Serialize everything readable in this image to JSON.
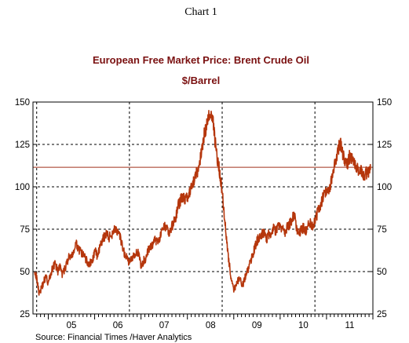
{
  "chart_data": {
    "type": "line",
    "heading": "Chart 1",
    "title": "European Free Market Price: Brent Crude Oil",
    "subtitle": "$/Barrel",
    "source": "Source:  Financial Times /Haver Analytics",
    "ylim": [
      25,
      150
    ],
    "yticks": [
      25,
      50,
      75,
      100,
      125,
      150
    ],
    "y_axes": [
      "left",
      "right"
    ],
    "x_range": [
      2004.67,
      2012.0
    ],
    "year_ticks": [
      "05",
      "06",
      "07",
      "08",
      "09",
      "10",
      "11"
    ],
    "vertical_gridlines_at": [
      2004.75,
      2006.75,
      2008.75,
      2010.75
    ],
    "grid": "dotted",
    "reference_line": {
      "y": 111.5
    },
    "colors": {
      "series": "#b5360c",
      "reference": "#a0301a",
      "title": "#7a1010"
    },
    "series": [
      {
        "x": [
          2004.7,
          2004.75,
          2004.8,
          2004.85,
          2004.9,
          2004.95,
          2005.0,
          2005.05,
          2005.1,
          2005.15,
          2005.2,
          2005.25,
          2005.3,
          2005.35,
          2005.4,
          2005.45,
          2005.5,
          2005.55,
          2005.6,
          2005.65,
          2005.7,
          2005.75,
          2005.8,
          2005.85,
          2005.9,
          2005.95,
          2006.0,
          2006.05,
          2006.1,
          2006.15,
          2006.2,
          2006.25,
          2006.3,
          2006.35,
          2006.4,
          2006.45,
          2006.5,
          2006.55,
          2006.6,
          2006.65,
          2006.7,
          2006.75,
          2006.8,
          2006.85,
          2006.9,
          2006.95,
          2007.0,
          2007.05,
          2007.1,
          2007.15,
          2007.2,
          2007.25,
          2007.3,
          2007.35,
          2007.4,
          2007.45,
          2007.5,
          2007.55,
          2007.6,
          2007.65,
          2007.7,
          2007.75,
          2007.8,
          2007.85,
          2007.9,
          2007.95,
          2008.0,
          2008.05,
          2008.1,
          2008.15,
          2008.2,
          2008.25,
          2008.3,
          2008.35,
          2008.4,
          2008.45,
          2008.5,
          2008.55,
          2008.6,
          2008.65,
          2008.7,
          2008.75,
          2008.8,
          2008.85,
          2008.9,
          2008.95,
          2009.0,
          2009.05,
          2009.1,
          2009.15,
          2009.2,
          2009.25,
          2009.3,
          2009.35,
          2009.4,
          2009.45,
          2009.5,
          2009.55,
          2009.6,
          2009.65,
          2009.7,
          2009.75,
          2009.8,
          2009.85,
          2009.9,
          2009.95,
          2010.0,
          2010.05,
          2010.1,
          2010.15,
          2010.2,
          2010.25,
          2010.3,
          2010.35,
          2010.4,
          2010.45,
          2010.5,
          2010.55,
          2010.6,
          2010.65,
          2010.7,
          2010.75,
          2010.8,
          2010.85,
          2010.9,
          2010.95,
          2011.0,
          2011.05,
          2011.1,
          2011.15,
          2011.2,
          2011.25,
          2011.3,
          2011.35,
          2011.4,
          2011.45,
          2011.5,
          2011.55,
          2011.6,
          2011.65,
          2011.7,
          2011.75,
          2011.8,
          2011.85,
          2011.9,
          2011.95
        ],
        "values": [
          52,
          46,
          38,
          40,
          44,
          47,
          43,
          48,
          53,
          55,
          50,
          53,
          48,
          51,
          55,
          59,
          58,
          62,
          66,
          64,
          61,
          60,
          58,
          55,
          55,
          56,
          62,
          60,
          63,
          67,
          70,
          73,
          70,
          71,
          74,
          76,
          72,
          70,
          64,
          60,
          58,
          55,
          58,
          60,
          62,
          60,
          53,
          56,
          58,
          62,
          64,
          66,
          69,
          68,
          70,
          73,
          76,
          78,
          72,
          75,
          79,
          82,
          89,
          92,
          94,
          93,
          94,
          96,
          100,
          104,
          108,
          112,
          120,
          130,
          134,
          140,
          144,
          140,
          126,
          116,
          108,
          97,
          83,
          68,
          55,
          45,
          38,
          43,
          45,
          44,
          42,
          47,
          50,
          55,
          59,
          64,
          68,
          70,
          72,
          73,
          69,
          72,
          73,
          76,
          73,
          76,
          77,
          75,
          73,
          76,
          78,
          80,
          84,
          77,
          72,
          74,
          76,
          74,
          78,
          78,
          76,
          80,
          84,
          88,
          92,
          96,
          97,
          98,
          103,
          110,
          116,
          122,
          126,
          120,
          116,
          114,
          118,
          117,
          114,
          111,
          109,
          110,
          107,
          108,
          109,
          110
        ]
      }
    ]
  }
}
